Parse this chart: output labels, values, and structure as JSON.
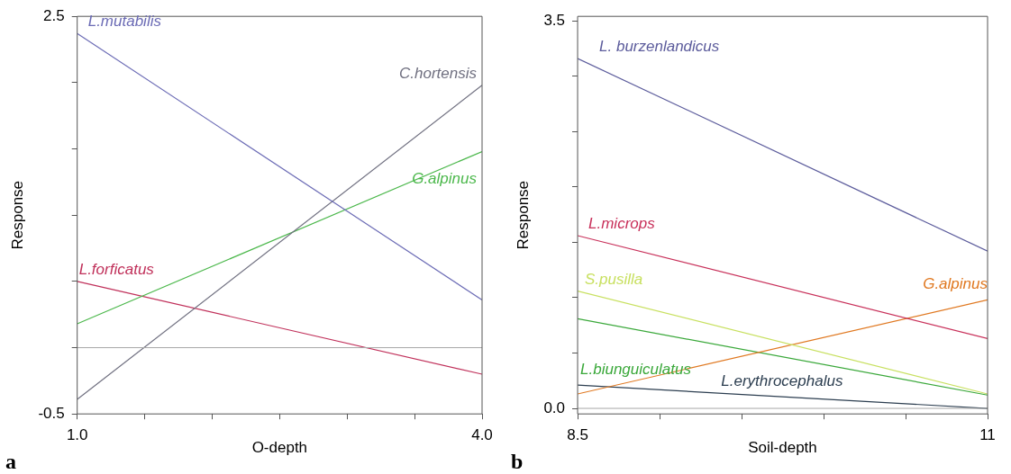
{
  "chart_data": [
    {
      "type": "line",
      "title": "a",
      "xlabel": "O-depth",
      "ylabel": "Response",
      "x": [
        1.0,
        4.0
      ],
      "xlim": [
        1.0,
        4.0
      ],
      "ylim": [
        -0.5,
        2.5
      ],
      "xticks": [
        {
          "value": 1.0,
          "label": "1.0"
        },
        {
          "value": 1.5,
          "label": null
        },
        {
          "value": 2.0,
          "label": null
        },
        {
          "value": 2.5,
          "label": null
        },
        {
          "value": 3.0,
          "label": null
        },
        {
          "value": 3.5,
          "label": null
        },
        {
          "value": 4.0,
          "label": "4.0"
        }
      ],
      "yticks": [
        -0.5,
        {
          "value": 0.0,
          "label": null
        },
        {
          "value": 0.5,
          "label": null
        },
        {
          "value": 1.0,
          "label": null
        },
        {
          "value": 1.5,
          "label": null
        },
        {
          "value": 2.0,
          "label": null
        },
        2.5
      ],
      "series": [
        {
          "name": "L.mutabilis",
          "color": "#6b6bb5",
          "values": [
            2.37,
            0.36
          ]
        },
        {
          "name": "C.hortensis",
          "color": "#707080",
          "values": [
            -0.39,
            1.98
          ]
        },
        {
          "name": "G.alpinus",
          "color": "#4cb84c",
          "values": [
            0.18,
            1.48
          ]
        },
        {
          "name": "L.forficatus",
          "color": "#c0305a",
          "values": [
            0.5,
            -0.2
          ]
        }
      ],
      "ref_lines": [
        {
          "axis": "y",
          "value": 0.0,
          "color": "#a8a8a8"
        }
      ],
      "grid": false,
      "legend": false,
      "marker": "none",
      "line_style": "solid"
    },
    {
      "type": "line",
      "title": "b",
      "xlabel": "Soil-depth",
      "ylabel": "Response",
      "x": [
        8.5,
        11
      ],
      "xlim": [
        8.5,
        11
      ],
      "ylim": [
        -0.05,
        3.54
      ],
      "xticks": [
        8.5,
        {
          "value": 9.0,
          "label": null
        },
        {
          "value": 9.5,
          "label": null
        },
        {
          "value": 10.0,
          "label": null
        },
        {
          "value": 10.5,
          "label": null
        },
        11
      ],
      "yticks": [
        {
          "value": 0.0,
          "label": "0.0"
        },
        {
          "value": 0.5,
          "label": null
        },
        {
          "value": 1.0,
          "label": null
        },
        {
          "value": 1.5,
          "label": null
        },
        {
          "value": 2.0,
          "label": null
        },
        {
          "value": 2.5,
          "label": null
        },
        {
          "value": 3.0,
          "label": null
        },
        3.5
      ],
      "series": [
        {
          "name": "L. burzenlandicus",
          "color": "#5c5c9c",
          "values": [
            3.16,
            1.42
          ]
        },
        {
          "name": "L.microps",
          "color": "#c8305a",
          "values": [
            1.56,
            0.63
          ]
        },
        {
          "name": "S.pusilla",
          "color": "#c8e060",
          "values": [
            1.06,
            0.13
          ]
        },
        {
          "name": "G.alpinus",
          "color": "#e07820",
          "values": [
            0.13,
            0.98
          ]
        },
        {
          "name": "L.biunguiculatus",
          "color": "#3aa83a",
          "values": [
            0.81,
            0.12
          ]
        },
        {
          "name": "L.erythrocephalus",
          "color": "#2c3e50",
          "values": [
            0.21,
            0.0
          ]
        }
      ],
      "ref_lines": [
        {
          "axis": "y",
          "value": 0.0,
          "color": "#a8a8a8"
        }
      ],
      "grid": false,
      "legend": false,
      "marker": "none",
      "line_style": "solid"
    }
  ]
}
